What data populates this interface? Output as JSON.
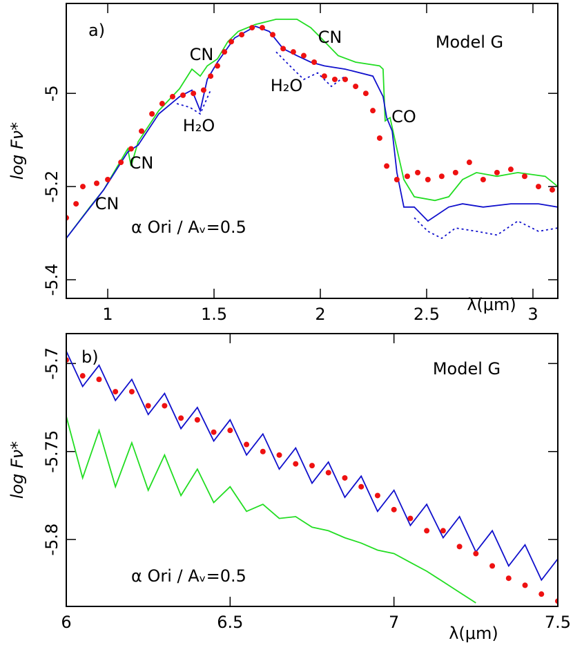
{
  "chart_data": [
    {
      "type": "line",
      "x_label": "λ(μm)",
      "y_label": "log Fν*",
      "xlim": [
        0.805,
        3.117
      ],
      "ylim": [
        -5.44,
        -4.807
      ],
      "xticks": [
        1,
        1.5,
        2,
        2.5,
        3
      ],
      "yticks": [
        -5.4,
        -5.2,
        -5
      ],
      "annotations": [
        "a)",
        "Model G",
        "CN",
        "CN",
        "CN",
        "CN",
        "H₂O",
        "H₂O",
        "CO",
        "α Ori / Aᵥ=0.5"
      ],
      "series": [
        {
          "color": "#22dd22",
          "style": "line",
          "x": [
            0.805,
            0.916,
            0.981,
            1.094,
            1.11,
            1.143,
            1.24,
            1.338,
            1.396,
            1.435,
            1.468,
            1.516,
            1.565,
            1.614,
            1.695,
            1.792,
            1.89,
            1.955,
            2.003,
            2.084,
            2.166,
            2.279,
            2.295,
            2.305,
            2.328,
            2.36,
            2.393,
            2.442,
            2.539,
            2.604,
            2.669,
            2.734,
            2.831,
            2.929,
            3.058,
            3.117
          ],
          "values": [
            -5.311,
            -5.244,
            -5.207,
            -5.119,
            -5.156,
            -5.104,
            -5.037,
            -4.99,
            -4.948,
            -4.963,
            -4.941,
            -4.926,
            -4.889,
            -4.867,
            -4.852,
            -4.841,
            -4.841,
            -4.859,
            -4.881,
            -4.919,
            -4.933,
            -4.941,
            -4.948,
            -5.059,
            -5.052,
            -5.119,
            -5.185,
            -5.222,
            -5.23,
            -5.222,
            -5.185,
            -5.17,
            -5.178,
            -5.17,
            -5.178,
            -5.2
          ]
        },
        {
          "color": "#1010cc",
          "style": "line",
          "x": [
            0.805,
            0.981,
            1.094,
            1.143,
            1.24,
            1.338,
            1.396,
            1.435,
            1.468,
            1.516,
            1.597,
            1.695,
            1.76,
            1.825,
            1.89,
            1.955,
            2.019,
            2.117,
            2.247,
            2.295,
            2.312,
            2.338,
            2.36,
            2.393,
            2.442,
            2.506,
            2.604,
            2.669,
            2.766,
            2.896,
            3.026,
            3.117
          ],
          "values": [
            -5.311,
            -5.207,
            -5.126,
            -5.111,
            -5.044,
            -5.007,
            -4.993,
            -5.037,
            -4.97,
            -4.933,
            -4.881,
            -4.856,
            -4.867,
            -4.904,
            -4.919,
            -4.933,
            -4.941,
            -4.948,
            -4.963,
            -5.007,
            -5.052,
            -5.081,
            -5.17,
            -5.244,
            -5.244,
            -5.274,
            -5.244,
            -5.237,
            -5.244,
            -5.237,
            -5.237,
            -5.244
          ]
        },
        {
          "color": "#1010cc",
          "style": "dotted",
          "x": [
            1.325,
            1.386,
            1.435,
            1.484,
            null,
            1.792,
            1.857,
            1.922,
            1.987,
            2.052,
            2.117,
            null,
            2.442,
            2.506,
            2.571,
            2.636,
            2.734,
            2.831,
            2.929,
            3.026,
            3.117
          ],
          "values": [
            -5.022,
            -5.03,
            -5.044,
            -4.993,
            null,
            -4.911,
            -4.941,
            -4.97,
            -4.956,
            -4.985,
            -4.963,
            null,
            -5.267,
            -5.296,
            -5.311,
            -5.289,
            -5.296,
            -5.304,
            -5.274,
            -5.296,
            -5.289
          ]
        },
        {
          "color": "#ee1111",
          "style": "points",
          "x": [
            0.805,
            0.851,
            0.883,
            0.948,
            1.0,
            1.062,
            1.11,
            1.159,
            1.208,
            1.256,
            1.305,
            1.354,
            1.403,
            1.451,
            1.484,
            1.516,
            1.549,
            1.581,
            1.63,
            1.679,
            1.727,
            1.776,
            1.825,
            1.873,
            1.922,
            1.971,
            2.019,
            2.068,
            2.117,
            2.166,
            2.214,
            2.247,
            2.279,
            2.312,
            2.36,
            2.409,
            2.458,
            2.506,
            2.571,
            2.636,
            2.701,
            2.766,
            2.831,
            2.896,
            2.961,
            3.026,
            3.091
          ],
          "values": [
            -5.267,
            -5.237,
            -5.2,
            -5.193,
            -5.185,
            -5.148,
            -5.119,
            -5.081,
            -5.044,
            -5.022,
            -5.007,
            -5.004,
            -5.0,
            -4.993,
            -4.963,
            -4.941,
            -4.911,
            -4.889,
            -4.874,
            -4.859,
            -4.859,
            -4.874,
            -4.904,
            -4.911,
            -4.919,
            -4.933,
            -4.963,
            -4.97,
            -4.97,
            -4.985,
            -5.0,
            -5.037,
            -5.096,
            -5.156,
            -5.185,
            -5.178,
            -5.17,
            -5.185,
            -5.178,
            -5.17,
            -5.148,
            -5.185,
            -5.17,
            -5.163,
            -5.178,
            -5.2,
            -5.207
          ]
        }
      ]
    },
    {
      "type": "line",
      "x_label": "λ(μm)",
      "y_label": "log Fν*",
      "xlim": [
        6,
        7.5
      ],
      "ylim": [
        -5.838,
        -5.683
      ],
      "xticks": [
        6,
        6.5,
        7,
        7.5
      ],
      "yticks": [
        -5.8,
        -5.75,
        -5.7
      ],
      "annotations": [
        "b)",
        "Model G",
        "α Ori / Aᵥ=0.5"
      ],
      "series": [
        {
          "color": "#22dd22",
          "style": "line",
          "x": [
            6.0,
            6.05,
            6.1,
            6.15,
            6.2,
            6.25,
            6.3,
            6.35,
            6.4,
            6.45,
            6.5,
            6.55,
            6.6,
            6.65,
            6.7,
            6.75,
            6.8,
            6.85,
            6.9,
            6.95,
            7.0,
            7.05,
            7.1,
            7.15,
            7.2,
            7.25
          ],
          "values": [
            -5.73,
            -5.765,
            -5.738,
            -5.77,
            -5.745,
            -5.772,
            -5.752,
            -5.775,
            -5.76,
            -5.779,
            -5.77,
            -5.784,
            -5.78,
            -5.788,
            -5.787,
            -5.793,
            -5.795,
            -5.799,
            -5.802,
            -5.806,
            -5.808,
            -5.813,
            -5.818,
            -5.824,
            -5.83,
            -5.836
          ]
        },
        {
          "color": "#1010cc",
          "style": "line",
          "x": [
            6.0,
            6.05,
            6.1,
            6.15,
            6.2,
            6.25,
            6.3,
            6.35,
            6.4,
            6.45,
            6.5,
            6.55,
            6.6,
            6.65,
            6.7,
            6.75,
            6.8,
            6.85,
            6.9,
            6.95,
            7.0,
            7.05,
            7.1,
            7.15,
            7.2,
            7.25,
            7.3,
            7.35,
            7.4,
            7.45,
            7.5
          ],
          "values": [
            -5.693,
            -5.713,
            -5.701,
            -5.721,
            -5.709,
            -5.729,
            -5.717,
            -5.737,
            -5.725,
            -5.744,
            -5.732,
            -5.752,
            -5.74,
            -5.76,
            -5.748,
            -5.768,
            -5.756,
            -5.776,
            -5.764,
            -5.784,
            -5.772,
            -5.792,
            -5.78,
            -5.799,
            -5.787,
            -5.807,
            -5.795,
            -5.815,
            -5.803,
            -5.823,
            -5.811
          ]
        },
        {
          "color": "#ee1111",
          "style": "points",
          "x": [
            6.0,
            6.05,
            6.1,
            6.15,
            6.2,
            6.25,
            6.3,
            6.35,
            6.4,
            6.45,
            6.5,
            6.55,
            6.6,
            6.65,
            6.7,
            6.75,
            6.8,
            6.85,
            6.9,
            6.95,
            7.0,
            7.05,
            7.1,
            7.15,
            7.2,
            7.25,
            7.3,
            7.35,
            7.4,
            7.45,
            7.5
          ],
          "values": [
            -5.698,
            -5.707,
            -5.709,
            -5.716,
            -5.716,
            -5.724,
            -5.724,
            -5.731,
            -5.732,
            -5.739,
            -5.738,
            -5.746,
            -5.75,
            -5.752,
            -5.757,
            -5.758,
            -5.762,
            -5.765,
            -5.77,
            -5.775,
            -5.783,
            -5.788,
            -5.795,
            -5.795,
            -5.804,
            -5.808,
            -5.815,
            -5.822,
            -5.826,
            -5.831,
            -5.835
          ]
        }
      ]
    }
  ]
}
